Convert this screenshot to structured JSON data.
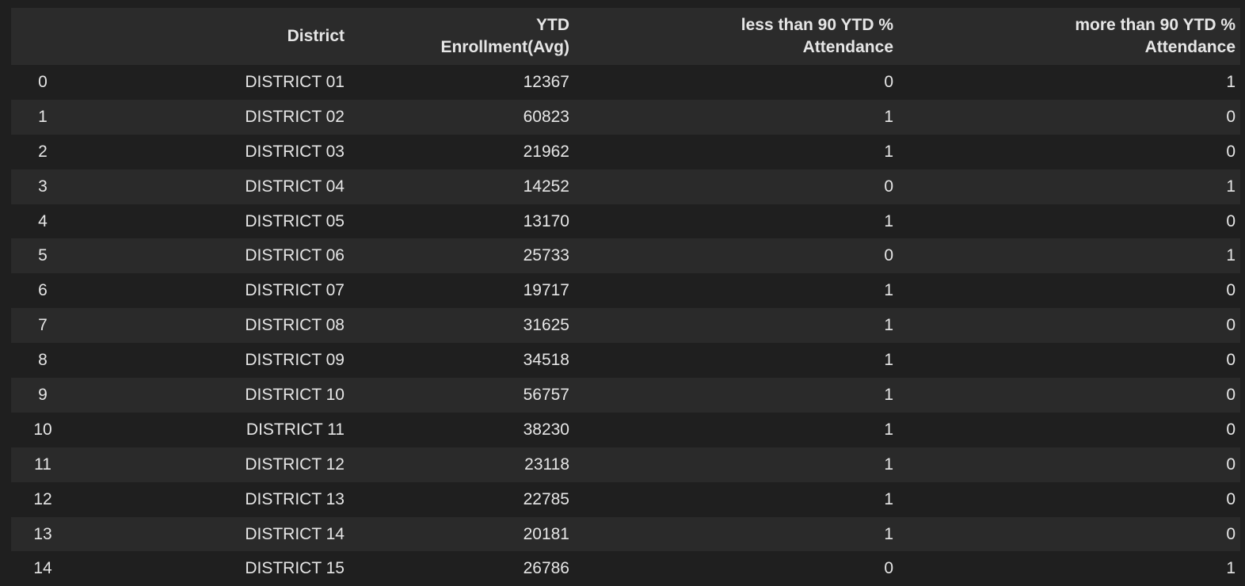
{
  "table": {
    "headers": [
      "",
      "District",
      "YTD\nEnrollment(Avg)",
      "less than 90 YTD %\nAttendance",
      "more than 90 YTD %\nAttendance"
    ],
    "header_lines": [
      [
        ""
      ],
      [
        "District"
      ],
      [
        "YTD",
        "Enrollment(Avg)"
      ],
      [
        "less than 90 YTD %",
        "Attendance"
      ],
      [
        "more than 90 YTD %",
        "Attendance"
      ]
    ],
    "rows": [
      [
        "0",
        "DISTRICT 01",
        "12367",
        "0",
        "1"
      ],
      [
        "1",
        "DISTRICT 02",
        "60823",
        "1",
        "0"
      ],
      [
        "2",
        "DISTRICT 03",
        "21962",
        "1",
        "0"
      ],
      [
        "3",
        "DISTRICT 04",
        "14252",
        "0",
        "1"
      ],
      [
        "4",
        "DISTRICT 05",
        "13170",
        "1",
        "0"
      ],
      [
        "5",
        "DISTRICT 06",
        "25733",
        "0",
        "1"
      ],
      [
        "6",
        "DISTRICT 07",
        "19717",
        "1",
        "0"
      ],
      [
        "7",
        "DISTRICT 08",
        "31625",
        "1",
        "0"
      ],
      [
        "8",
        "DISTRICT 09",
        "34518",
        "1",
        "0"
      ],
      [
        "9",
        "DISTRICT 10",
        "56757",
        "1",
        "0"
      ],
      [
        "10",
        "DISTRICT 11",
        "38230",
        "1",
        "0"
      ],
      [
        "11",
        "DISTRICT 12",
        "23118",
        "1",
        "0"
      ],
      [
        "12",
        "DISTRICT 13",
        "22785",
        "1",
        "0"
      ],
      [
        "13",
        "DISTRICT 14",
        "20181",
        "1",
        "0"
      ],
      [
        "14",
        "DISTRICT 15",
        "26786",
        "0",
        "1"
      ]
    ]
  },
  "colors": {
    "background": "#1f1f1f",
    "header_bg": "#2b2b2b",
    "row_alt_bg": "#2a2a2a",
    "text": "#e6e6e6"
  }
}
